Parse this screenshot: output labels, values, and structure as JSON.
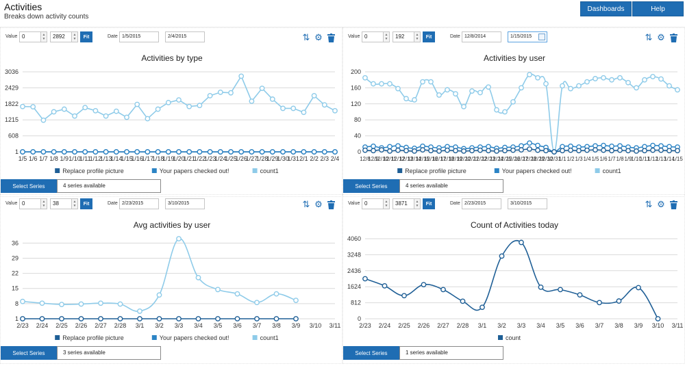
{
  "header": {
    "title": "Activities",
    "subtitle": "Breaks down activity counts",
    "dashboards_label": "Dashboards",
    "help_label": "Help"
  },
  "icons": {
    "swap": "sort-arrows-icon",
    "settings": "gear-icon",
    "delete": "trash-icon"
  },
  "colors": {
    "accent": "#1f6db3",
    "series_dark": "#1f5f96",
    "series_mid": "#2c84c5",
    "series_light": "#8ecbe9"
  },
  "panels": [
    {
      "value_label": "Value",
      "value_min": "0",
      "value_max": "2892",
      "fit_label": "Fit",
      "date_label": "Date",
      "date_from": "1/5/2015",
      "date_to": "2/4/2015",
      "select_label": "Select Series",
      "series_count": "4 series available"
    },
    {
      "value_label": "Value",
      "value_min": "0",
      "value_max": "192",
      "fit_label": "Fit",
      "date_label": "Date",
      "date_from": "12/8/2014",
      "date_to": "1/15/2015",
      "select_label": "Select Series",
      "series_count": "4 series available"
    },
    {
      "value_label": "Value",
      "value_min": "0",
      "value_max": "38",
      "fit_label": "Fit",
      "date_label": "Date",
      "date_from": "2/23/2015",
      "date_to": "3/10/2015",
      "select_label": "Select Series",
      "series_count": "3 series available"
    },
    {
      "value_label": "Value",
      "value_min": "0",
      "value_max": "3871",
      "fit_label": "Fit",
      "date_label": "Date",
      "date_from": "2/23/2015",
      "date_to": "3/10/2015",
      "select_label": "Select Series",
      "series_count": "1 series available"
    }
  ],
  "chart_data": [
    {
      "type": "line",
      "title": "Activities by type",
      "curve": "straight",
      "yticks": [
        1,
        608,
        1215,
        1822,
        2429,
        3036
      ],
      "ylim": [
        1,
        3036
      ],
      "categories": [
        "1/5",
        "1/6",
        "1/7",
        "1/8",
        "1/9",
        "1/10",
        "1/11",
        "1/12",
        "1/13",
        "1/14",
        "1/15",
        "1/16",
        "1/17",
        "1/18",
        "1/19",
        "1/20",
        "1/21",
        "1/22",
        "1/23",
        "1/24",
        "1/25",
        "1/26",
        "1/27",
        "1/28",
        "1/29",
        "1/30",
        "1/31",
        "2/1",
        "2/2",
        "2/3",
        "2/4"
      ],
      "tick_labels": [
        "1/5",
        "1/6",
        "1/7",
        "1/8",
        "1/9",
        "1/10",
        "1/11",
        "1/12",
        "1/13",
        "1/14",
        "1/15",
        "1/16",
        "1/17",
        "1/18",
        "1/19",
        "1/20",
        "1/21",
        "1/22",
        "1/23",
        "1/24",
        "1/25",
        "1/26",
        "1/27",
        "1/28",
        "1/29",
        "1/30",
        "1/31",
        "2/1",
        "2/2",
        "2/3",
        "2/4"
      ],
      "legend": [
        "Replace profile picture",
        "Your papers checked out!",
        "count1"
      ],
      "series": [
        {
          "name": "count1",
          "color": "#8ecbe9",
          "values": [
            1720,
            1710,
            1200,
            1520,
            1620,
            1360,
            1680,
            1560,
            1360,
            1540,
            1310,
            1800,
            1260,
            1620,
            1870,
            1970,
            1720,
            1760,
            2130,
            2260,
            2240,
            2870,
            1920,
            2410,
            2000,
            1650,
            1650,
            1500,
            2130,
            1780,
            1560
          ]
        },
        {
          "name": "Replace profile picture",
          "color": "#1f5f96",
          "values": [
            1,
            1,
            1,
            1,
            1,
            1,
            1,
            1,
            1,
            1,
            1,
            1,
            1,
            1,
            1,
            1,
            1,
            1,
            1,
            1,
            1,
            1,
            1,
            1,
            1,
            1,
            1,
            1,
            1,
            1,
            1
          ]
        },
        {
          "name": "Your papers checked out!",
          "color": "#2c84c5",
          "values": [
            1,
            1,
            1,
            1,
            1,
            1,
            1,
            1,
            1,
            1,
            1,
            1,
            1,
            1,
            1,
            1,
            1,
            1,
            1,
            1,
            1,
            1,
            1,
            1,
            1,
            1,
            1,
            1,
            1,
            1,
            1
          ]
        }
      ]
    },
    {
      "type": "line",
      "title": "Activities by user",
      "curve": "smooth",
      "yticks": [
        0,
        40,
        80,
        120,
        160,
        200
      ],
      "ylim": [
        0,
        200
      ],
      "categories": [
        "12/8",
        "12/9",
        "12/10",
        "12/11",
        "12/12",
        "12/13",
        "12/14",
        "12/15",
        "12/16",
        "12/17",
        "12/18",
        "12/19",
        "12/20",
        "12/21",
        "12/22",
        "12/23",
        "12/24",
        "12/25",
        "12/26",
        "12/27",
        "12/28",
        "12/29",
        "12/30",
        "12/31",
        "1/1",
        "1/2",
        "1/3",
        "1/4",
        "1/5",
        "1/6",
        "1/7",
        "1/8",
        "1/9",
        "1/10",
        "1/11",
        "1/12",
        "1/13",
        "1/14",
        "1/15"
      ],
      "tick_labels": [
        "12/8",
        "12/9",
        "12/10",
        "12/11",
        "12/12",
        "12/13",
        "12/14",
        "12/15",
        "12/16",
        "12/17",
        "12/18",
        "12/19",
        "12/20",
        "12/21",
        "12/22",
        "12/23",
        "12/24",
        "12/25",
        "12/26",
        "12/27",
        "12/28",
        "12/29",
        "12/30",
        "12/31",
        "1/1",
        "1/2",
        "1/3",
        "1/4",
        "1/5",
        "1/6",
        "1/7",
        "1/8",
        "1/9",
        "1/10",
        "1/11",
        "1/12",
        "1/13",
        "1/14",
        "1/15"
      ],
      "legend": [
        "Replace profile picture",
        "Your papers checked out!",
        "count1"
      ],
      "series": [
        {
          "name": "count1",
          "color": "#8ecbe9",
          "values": [
            185,
            170,
            170,
            170,
            158,
            133,
            130,
            175,
            175,
            142,
            155,
            145,
            113,
            152,
            148,
            162,
            105,
            100,
            125,
            160,
            193,
            185,
            170,
            0,
            165,
            158,
            165,
            175,
            183,
            185,
            180,
            185,
            173,
            160,
            180,
            188,
            182,
            165,
            155
          ]
        },
        {
          "name": "Your papers checked out!",
          "color": "#2c84c5",
          "values": [
            12,
            14,
            10,
            13,
            15,
            11,
            9,
            14,
            12,
            10,
            13,
            12,
            8,
            10,
            12,
            13,
            9,
            11,
            12,
            15,
            22,
            16,
            11,
            0,
            13,
            14,
            12,
            13,
            15,
            16,
            14,
            15,
            12,
            10,
            13,
            16,
            15,
            13,
            12
          ]
        },
        {
          "name": "Replace profile picture",
          "color": "#1f5f96",
          "values": [
            4,
            3,
            5,
            2,
            4,
            3,
            2,
            5,
            3,
            2,
            4,
            3,
            2,
            3,
            4,
            3,
            2,
            3,
            4,
            5,
            7,
            4,
            3,
            0,
            3,
            4,
            3,
            4,
            5,
            4,
            3,
            4,
            3,
            2,
            3,
            4,
            4,
            3,
            3
          ]
        }
      ]
    },
    {
      "type": "line",
      "title": "Avg activities by user",
      "curve": "smooth",
      "yticks": [
        1,
        8,
        15,
        22,
        29,
        36
      ],
      "ylim": [
        1,
        38
      ],
      "categories": [
        "2/23",
        "2/24",
        "2/25",
        "2/26",
        "2/27",
        "2/28",
        "3/1",
        "3/2",
        "3/3",
        "3/4",
        "3/5",
        "3/6",
        "3/7",
        "3/8",
        "3/9",
        "3/10",
        "3/11"
      ],
      "tick_labels": [
        "2/23",
        "2/24",
        "2/25",
        "2/26",
        "2/27",
        "2/28",
        "3/1",
        "3/2",
        "3/3",
        "3/4",
        "3/5",
        "3/6",
        "3/7",
        "3/8",
        "3/9",
        "3/10",
        "3/11"
      ],
      "legend": [
        "Replace profile picture",
        "Your papers checked out!",
        "count1"
      ],
      "series": [
        {
          "name": "count1",
          "color": "#8ecbe9",
          "values": [
            9,
            8.2,
            7.6,
            7.8,
            8.2,
            7.8,
            4.5,
            12,
            38,
            20,
            14.5,
            12.5,
            8.5,
            12.5,
            9.5,
            null,
            null
          ]
        },
        {
          "name": "Replace profile picture",
          "color": "#1f5f96",
          "values": [
            1,
            1,
            1,
            1,
            1,
            1,
            1,
            1,
            1,
            1,
            1,
            1,
            1,
            1,
            1,
            null,
            null
          ]
        }
      ]
    },
    {
      "type": "line",
      "title": "Count of Activities today",
      "curve": "smooth",
      "yticks": [
        0,
        812,
        1624,
        2436,
        3248,
        4060
      ],
      "ylim": [
        0,
        4060
      ],
      "categories": [
        "2/23",
        "2/24",
        "2/25",
        "2/26",
        "2/27",
        "2/28",
        "3/1",
        "3/2",
        "3/3",
        "3/4",
        "3/5",
        "3/6",
        "3/7",
        "3/8",
        "3/9",
        "3/10",
        "3/11"
      ],
      "tick_labels": [
        "2/23",
        "2/24",
        "2/25",
        "2/26",
        "2/27",
        "2/28",
        "3/1",
        "3/2",
        "3/3",
        "3/4",
        "3/5",
        "3/6",
        "3/7",
        "3/8",
        "3/9",
        "3/10",
        "3/11"
      ],
      "legend": [
        "count"
      ],
      "series": [
        {
          "name": "count",
          "color": "#1f5f96",
          "values": [
            2030,
            1670,
            1170,
            1730,
            1480,
            890,
            580,
            3180,
            3871,
            1600,
            1480,
            1210,
            820,
            900,
            1580,
            0,
            null
          ]
        }
      ]
    }
  ]
}
